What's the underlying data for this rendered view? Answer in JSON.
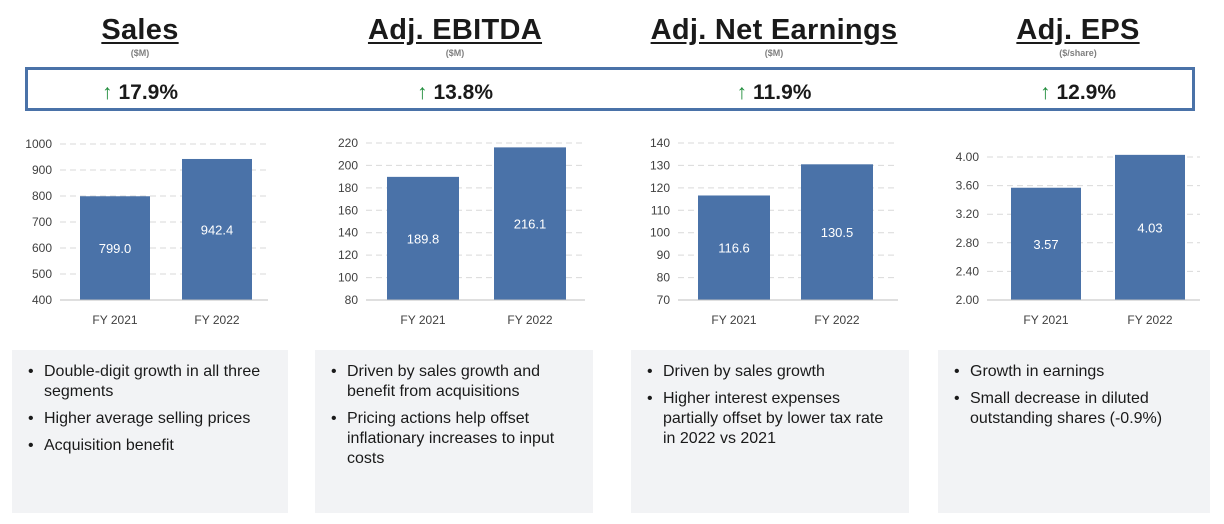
{
  "headers": [
    {
      "title": "Sales",
      "unit": "($M)"
    },
    {
      "title": "Adj. EBITDA",
      "unit": "($M)"
    },
    {
      "title": "Adj. Net Earnings",
      "unit": "($M)"
    },
    {
      "title": "Adj. EPS",
      "unit": "($/share)"
    }
  ],
  "growth": [
    "17.9%",
    "13.8%",
    "11.9%",
    "12.9%"
  ],
  "colors": {
    "bar": "#4a72a8",
    "grid": "#d9d9d9",
    "arrow": "#1e8c3a",
    "box_border": "#4a72a8",
    "panel_bg": "#f2f3f5"
  },
  "chart_data": [
    {
      "type": "bar",
      "title": "Sales",
      "categories": [
        "FY 2021",
        "FY 2022"
      ],
      "values": [
        799.0,
        942.4
      ],
      "value_labels": [
        "799.0",
        "942.4"
      ],
      "ylim": [
        400,
        1000
      ],
      "yticks": [
        400,
        500,
        600,
        700,
        800,
        900,
        1000
      ],
      "ytick_labels": [
        "400",
        "500",
        "600",
        "700",
        "800",
        "900",
        "1000"
      ]
    },
    {
      "type": "bar",
      "title": "Adj. EBITDA",
      "categories": [
        "FY 2021",
        "FY 2022"
      ],
      "values": [
        189.8,
        216.1
      ],
      "value_labels": [
        "189.8",
        "216.1"
      ],
      "ylim": [
        80,
        220
      ],
      "yticks": [
        80,
        100,
        120,
        140,
        160,
        180,
        200,
        220
      ],
      "ytick_labels": [
        "80",
        "100",
        "120",
        "140",
        "160",
        "180",
        "200",
        "220"
      ]
    },
    {
      "type": "bar",
      "title": "Adj. Net Earnings",
      "categories": [
        "FY 2021",
        "FY 2022"
      ],
      "values": [
        116.6,
        130.5
      ],
      "value_labels": [
        "116.6",
        "130.5"
      ],
      "ylim": [
        70,
        140
      ],
      "yticks": [
        70,
        80,
        90,
        100,
        110,
        120,
        130,
        140
      ],
      "ytick_labels": [
        "70",
        "80",
        "90",
        "100",
        "110",
        "120",
        "130",
        "140"
      ]
    },
    {
      "type": "bar",
      "title": "Adj. EPS",
      "categories": [
        "FY 2021",
        "FY 2022"
      ],
      "values": [
        3.57,
        4.03
      ],
      "value_labels": [
        "3.57",
        "4.03"
      ],
      "ylim": [
        2.0,
        4.0
      ],
      "yticks": [
        2.0,
        2.4,
        2.8,
        3.2,
        3.6,
        4.0
      ],
      "ytick_labels": [
        "2.00",
        "2.40",
        "2.80",
        "3.20",
        "3.60",
        "4.00"
      ]
    }
  ],
  "bullets": [
    [
      "Double-digit growth in all three segments",
      "Higher average selling prices",
      "Acquisition benefit"
    ],
    [
      "Driven by sales growth and benefit from acquisitions",
      "Pricing actions help offset inflationary increases to input costs"
    ],
    [
      "Driven by sales growth",
      "Higher interest expenses partially offset by lower tax rate in 2022 vs 2021"
    ],
    [
      "Growth in earnings",
      "Small decrease in diluted outstanding shares (-0.9%)"
    ]
  ]
}
